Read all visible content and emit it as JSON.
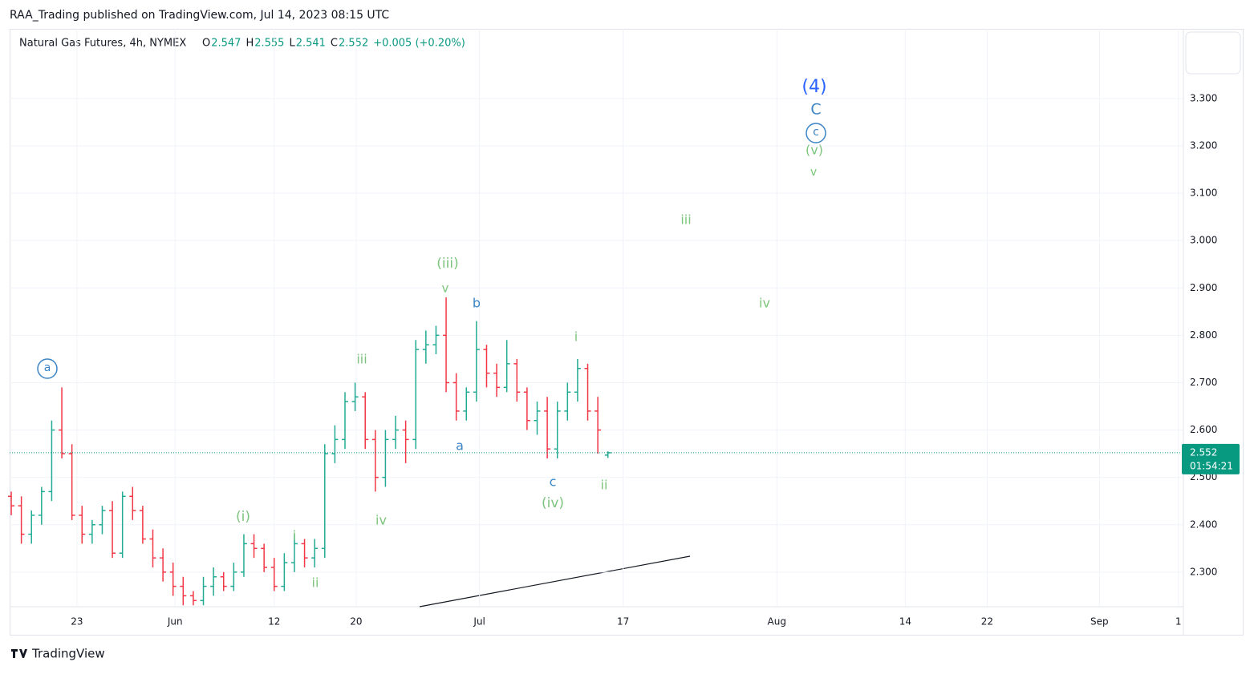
{
  "header": {
    "publisher": "RAA_Trading published on TradingView.com, Jul 14, 2023 08:15 UTC",
    "footer": "TradingView"
  },
  "chart_data": {
    "type": "ohlc",
    "legend": {
      "symbol": "Natural Gas Futures, 4h, NYMEX",
      "fields": [
        {
          "key": "O",
          "value": "2.547"
        },
        {
          "key": "H",
          "value": "2.555"
        },
        {
          "key": "L",
          "value": "2.541"
        },
        {
          "key": "C",
          "value": "2.552"
        }
      ],
      "change": "+0.005 (+0.20%)"
    },
    "open": [
      2.46,
      2.44,
      2.38,
      2.42,
      2.47,
      2.6,
      2.55,
      2.42,
      2.38,
      2.4,
      2.43,
      2.34,
      2.46,
      2.43,
      2.37,
      2.33,
      2.3,
      2.27,
      2.25,
      2.24,
      2.27,
      2.29,
      2.27,
      2.3,
      2.36,
      2.35,
      2.31,
      2.27,
      2.32,
      2.36,
      2.33,
      2.35,
      2.55,
      2.58,
      2.66,
      2.67,
      2.58,
      2.5,
      2.58,
      2.6,
      2.58,
      2.77,
      2.78,
      2.8,
      2.7,
      2.64,
      2.68,
      2.77,
      2.72,
      2.69,
      2.74,
      2.68,
      2.62,
      2.64,
      2.56,
      2.64,
      2.68,
      2.73,
      2.64,
      2.547
    ],
    "high": [
      2.47,
      2.46,
      2.43,
      2.48,
      2.62,
      2.69,
      2.57,
      2.44,
      2.41,
      2.44,
      2.45,
      2.47,
      2.48,
      2.44,
      2.39,
      2.35,
      2.32,
      2.29,
      2.26,
      2.29,
      2.31,
      2.3,
      2.32,
      2.38,
      2.38,
      2.36,
      2.33,
      2.34,
      2.38,
      2.37,
      2.37,
      2.57,
      2.61,
      2.68,
      2.7,
      2.68,
      2.6,
      2.6,
      2.63,
      2.62,
      2.79,
      2.81,
      2.82,
      2.88,
      2.72,
      2.69,
      2.83,
      2.78,
      2.74,
      2.79,
      2.75,
      2.69,
      2.66,
      2.67,
      2.66,
      2.7,
      2.75,
      2.74,
      2.67,
      2.555
    ],
    "low": [
      2.42,
      2.36,
      2.36,
      2.4,
      2.45,
      2.54,
      2.41,
      2.36,
      2.36,
      2.38,
      2.33,
      2.33,
      2.41,
      2.36,
      2.31,
      2.28,
      2.25,
      2.23,
      2.23,
      2.23,
      2.25,
      2.26,
      2.26,
      2.29,
      2.33,
      2.3,
      2.26,
      2.26,
      2.3,
      2.31,
      2.31,
      2.33,
      2.53,
      2.56,
      2.64,
      2.56,
      2.47,
      2.48,
      2.56,
      2.53,
      2.56,
      2.74,
      2.76,
      2.68,
      2.62,
      2.62,
      2.66,
      2.69,
      2.67,
      2.68,
      2.66,
      2.6,
      2.59,
      2.54,
      2.54,
      2.62,
      2.66,
      2.62,
      2.55,
      2.541
    ],
    "close": [
      2.44,
      2.38,
      2.42,
      2.47,
      2.6,
      2.55,
      2.42,
      2.38,
      2.4,
      2.43,
      2.34,
      2.46,
      2.43,
      2.37,
      2.33,
      2.3,
      2.27,
      2.25,
      2.24,
      2.27,
      2.29,
      2.27,
      2.3,
      2.36,
      2.35,
      2.31,
      2.27,
      2.32,
      2.36,
      2.33,
      2.35,
      2.55,
      2.58,
      2.66,
      2.67,
      2.58,
      2.5,
      2.58,
      2.6,
      2.58,
      2.77,
      2.78,
      2.8,
      2.7,
      2.64,
      2.68,
      2.77,
      2.72,
      2.69,
      2.74,
      2.68,
      2.62,
      2.64,
      2.56,
      2.64,
      2.68,
      2.73,
      2.64,
      2.6,
      2.552
    ],
    "up_color": "#22ab94",
    "down_color": "#f23645",
    "countdown": "01:54:21",
    "xlim": [
      -0.16,
      115.9
    ],
    "xticks": [
      {
        "value": 6.5,
        "label": "23"
      },
      {
        "value": 16.2,
        "label": "Jun"
      },
      {
        "value": 26,
        "label": "12"
      },
      {
        "value": 34.1,
        "label": "20"
      },
      {
        "value": 46.3,
        "label": "Jul"
      },
      {
        "value": 60.5,
        "label": "17"
      },
      {
        "value": 75.7,
        "label": "Aug"
      },
      {
        "value": 88.4,
        "label": "14"
      },
      {
        "value": 96.5,
        "label": "22"
      },
      {
        "value": 107.6,
        "label": "Sep"
      },
      {
        "value": 115.4,
        "label": "1"
      }
    ],
    "ylim": [
      2.227,
      3.447
    ],
    "yticks": [
      {
        "value": 2.3,
        "label": "2.300"
      },
      {
        "value": 2.4,
        "label": "2.400"
      },
      {
        "value": 2.5,
        "label": "2.500"
      },
      {
        "value": 2.6,
        "label": "2.600"
      },
      {
        "value": 2.7,
        "label": "2.700"
      },
      {
        "value": 2.8,
        "label": "2.800"
      },
      {
        "value": 2.9,
        "label": "2.900"
      },
      {
        "value": 3.0,
        "label": "3.000"
      },
      {
        "value": 3.1,
        "label": "3.100"
      },
      {
        "value": 3.2,
        "label": "3.200"
      },
      {
        "value": 3.3,
        "label": "3.300"
      }
    ],
    "grid": true,
    "annotations": [
      "(4)",
      "C",
      "c",
      "(v)",
      "v",
      "iii",
      "iv",
      "(iii)",
      "v",
      "b",
      "i",
      "a",
      "iii",
      "a",
      "c",
      "(iv)",
      "ii",
      "(i)",
      "iv",
      "i",
      "ii"
    ]
  }
}
